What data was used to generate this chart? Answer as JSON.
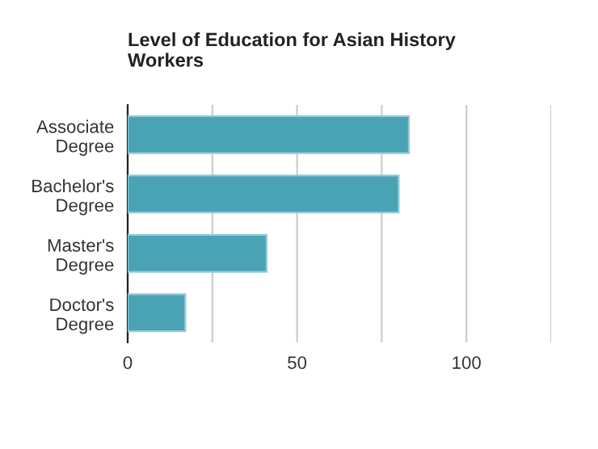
{
  "chart_data": {
    "type": "bar",
    "orientation": "horizontal",
    "title": "Level of Education for Asian History\nWorkers",
    "categories": [
      "Associate\nDegree",
      "Bachelor's\nDegree",
      "Master's\nDegree",
      "Doctor's\nDegree"
    ],
    "values": [
      83,
      80,
      41,
      17
    ],
    "color": "#4aa3b5",
    "xlim": [
      0,
      125
    ],
    "xticks": [
      0,
      {
        "value": 25,
        "label": null
      },
      50,
      {
        "value": 75,
        "label": null
      },
      100,
      {
        "value": 125,
        "label": null
      }
    ],
    "grid": "x"
  }
}
